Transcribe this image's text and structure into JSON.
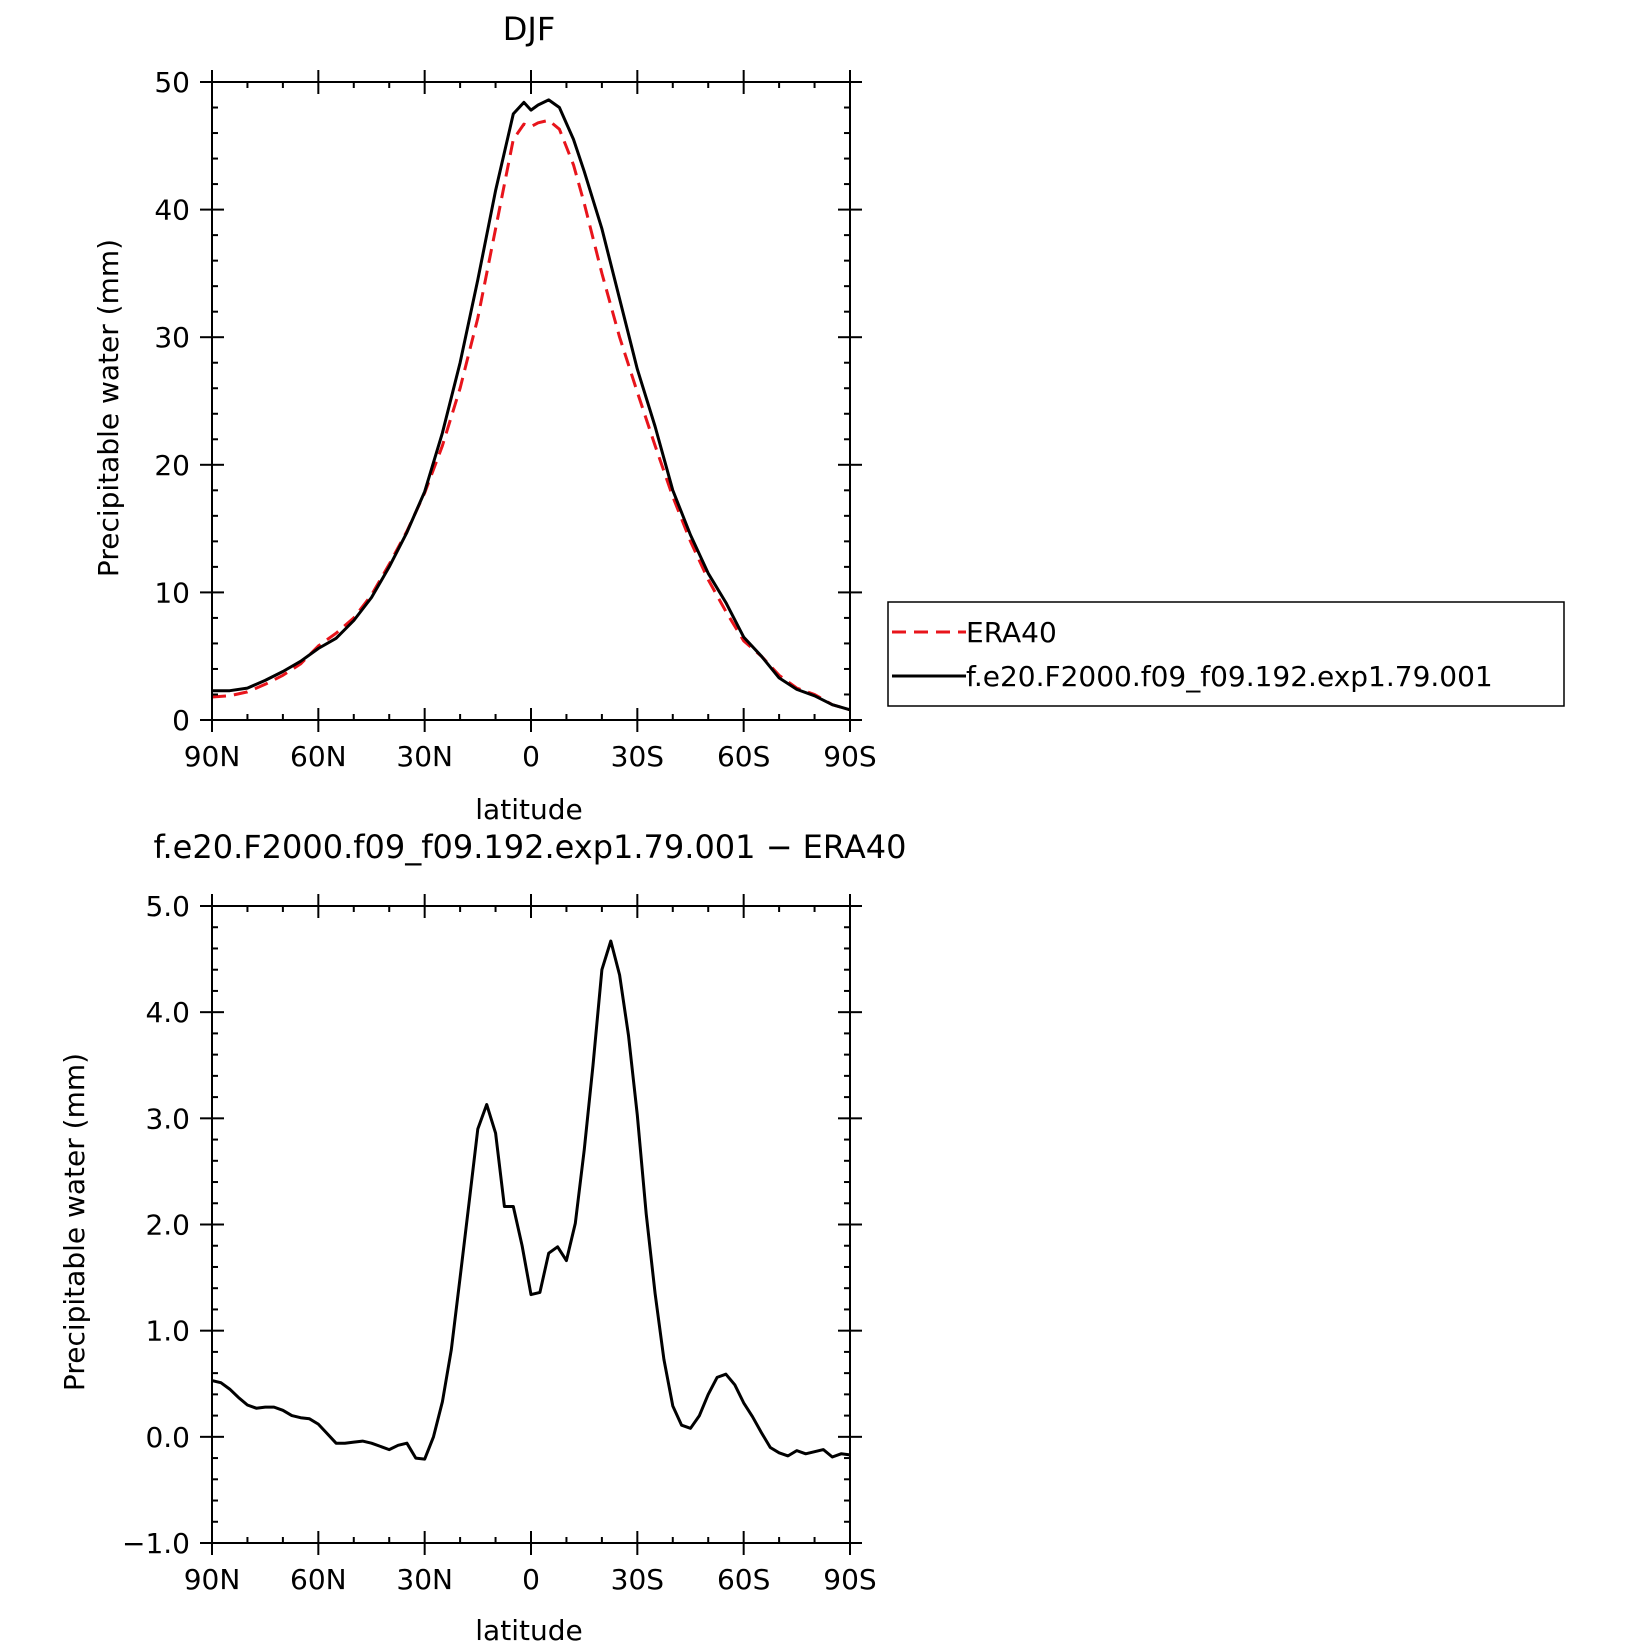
{
  "chart_data": [
    {
      "type": "line",
      "title": "DJF",
      "xlabel": "latitude",
      "ylabel": "Precipitable water (mm)",
      "xlim": [
        90,
        -90
      ],
      "ylim": [
        0,
        50
      ],
      "x_ticks": [
        {
          "value": 90,
          "label": "90N"
        },
        {
          "value": 60,
          "label": "60N"
        },
        {
          "value": 30,
          "label": "30N"
        },
        {
          "value": 0,
          "label": "0"
        },
        {
          "value": -30,
          "label": "30S"
        },
        {
          "value": -60,
          "label": "60S"
        },
        {
          "value": -90,
          "label": "90S"
        }
      ],
      "y_ticks": [
        {
          "value": 0,
          "label": "0"
        },
        {
          "value": 10,
          "label": "10"
        },
        {
          "value": 20,
          "label": "20"
        },
        {
          "value": 30,
          "label": "30"
        },
        {
          "value": 40,
          "label": "40"
        },
        {
          "value": 50,
          "label": "50"
        }
      ],
      "legend": "right",
      "series": [
        {
          "name": "ERA40",
          "color": "#e8141b",
          "dash": "dashed",
          "x": [
            90,
            85,
            80,
            75,
            70,
            65,
            60,
            55,
            50,
            45,
            40,
            35,
            30,
            25,
            20,
            15,
            10,
            5,
            2,
            0,
            -2,
            -5,
            -8,
            -12,
            -15,
            -20,
            -25,
            -30,
            -35,
            -40,
            -45,
            -50,
            -55,
            -60,
            -65,
            -70,
            -75,
            -80,
            -85,
            -90
          ],
          "y": [
            1.8,
            1.9,
            2.2,
            2.8,
            3.5,
            4.4,
            5.8,
            6.8,
            8.0,
            9.8,
            12.2,
            14.8,
            17.8,
            21.5,
            26.0,
            31.5,
            38.5,
            45.5,
            46.7,
            46.5,
            46.8,
            47.0,
            46.3,
            43.5,
            40.5,
            35.0,
            30.0,
            25.7,
            21.5,
            17.5,
            14.0,
            11.0,
            8.5,
            6.2,
            5.0,
            3.5,
            2.5,
            2.0,
            1.2,
            0.8
          ]
        },
        {
          "name": "f.e20.F2000.f09_f09.192.exp1.79.001",
          "color": "#000000",
          "dash": "solid",
          "x": [
            90,
            85,
            80,
            75,
            70,
            65,
            60,
            55,
            50,
            45,
            40,
            35,
            30,
            25,
            20,
            15,
            10,
            5,
            2,
            0,
            -2,
            -5,
            -8,
            -12,
            -15,
            -20,
            -25,
            -30,
            -35,
            -40,
            -45,
            -50,
            -55,
            -60,
            -65,
            -70,
            -75,
            -80,
            -85,
            -90
          ],
          "y": [
            2.3,
            2.3,
            2.5,
            3.1,
            3.8,
            4.6,
            5.6,
            6.4,
            7.8,
            9.6,
            12.0,
            14.7,
            17.9,
            22.5,
            28.0,
            34.5,
            41.5,
            47.5,
            48.4,
            47.8,
            48.2,
            48.6,
            48.0,
            45.5,
            43.0,
            38.5,
            33.0,
            27.5,
            23.0,
            18.0,
            14.5,
            11.5,
            9.2,
            6.5,
            5.0,
            3.3,
            2.4,
            1.9,
            1.2,
            0.8
          ]
        }
      ]
    },
    {
      "type": "line",
      "title": "f.e20.F2000.f09_f09.192.exp1.79.001 − ERA40",
      "xlabel": "latitude",
      "ylabel": "Precipitable water (mm)",
      "xlim": [
        90,
        -90
      ],
      "ylim": [
        -1.0,
        5.0
      ],
      "x_ticks": [
        {
          "value": 90,
          "label": "90N"
        },
        {
          "value": 60,
          "label": "60N"
        },
        {
          "value": 30,
          "label": "30N"
        },
        {
          "value": 0,
          "label": "0"
        },
        {
          "value": -30,
          "label": "30S"
        },
        {
          "value": -60,
          "label": "60S"
        },
        {
          "value": -90,
          "label": "90S"
        }
      ],
      "y_ticks": [
        {
          "value": -1.0,
          "label": "−1.0"
        },
        {
          "value": 0.0,
          "label": "0.0"
        },
        {
          "value": 1.0,
          "label": "1.0"
        },
        {
          "value": 2.0,
          "label": "2.0"
        },
        {
          "value": 3.0,
          "label": "3.0"
        },
        {
          "value": 4.0,
          "label": "4.0"
        },
        {
          "value": 5.0,
          "label": "5.0"
        }
      ],
      "series": [
        {
          "color": "#000000",
          "dash": "solid",
          "x": [
            90,
            87.5,
            85,
            82.5,
            80,
            77.5,
            75,
            72.5,
            70,
            67.5,
            65,
            62.5,
            60,
            57.5,
            55,
            52.5,
            50,
            47.5,
            45,
            42.5,
            40,
            37.5,
            35,
            32.5,
            30,
            27.5,
            25,
            22.5,
            20,
            17.5,
            15,
            12.5,
            10,
            7.5,
            5,
            2.5,
            0,
            -2.5,
            -5,
            -7.5,
            -10,
            -12.5,
            -15,
            -17.5,
            -20,
            -22.5,
            -25,
            -27.5,
            -30,
            -32.5,
            -35,
            -37.5,
            -40,
            -42.5,
            -45,
            -47.5,
            -50,
            -52.5,
            -55,
            -57.5,
            -60,
            -62.5,
            -65,
            -67.5,
            -70,
            -72.5,
            -75,
            -77.5,
            -80,
            -82.5,
            -85,
            -87.5,
            -90
          ],
          "y": [
            0.53,
            0.51,
            0.45,
            0.37,
            0.3,
            0.27,
            0.28,
            0.28,
            0.25,
            0.2,
            0.18,
            0.17,
            0.12,
            0.03,
            -0.06,
            -0.06,
            -0.05,
            -0.04,
            -0.06,
            -0.09,
            -0.12,
            -0.08,
            -0.06,
            -0.2,
            -0.21,
            0.0,
            0.33,
            0.82,
            1.5,
            2.2,
            2.9,
            3.13,
            2.86,
            2.17,
            2.17,
            1.8,
            1.34,
            1.36,
            1.73,
            1.79,
            1.66,
            2.01,
            2.7,
            3.5,
            4.4,
            4.67,
            4.35,
            3.78,
            3.03,
            2.1,
            1.35,
            0.73,
            0.29,
            0.11,
            0.08,
            0.2,
            0.4,
            0.56,
            0.59,
            0.49,
            0.32,
            0.19,
            0.04,
            -0.1,
            -0.15,
            -0.18,
            -0.13,
            -0.16,
            -0.14,
            -0.12,
            -0.19,
            -0.16,
            -0.17
          ]
        }
      ]
    }
  ]
}
